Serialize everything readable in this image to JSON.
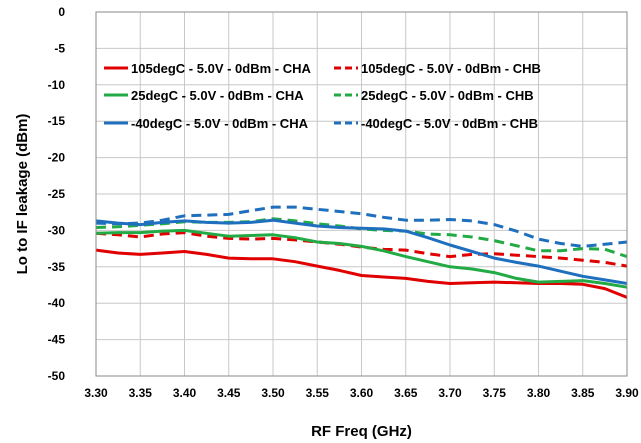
{
  "chart_data": {
    "type": "line",
    "xlabel": "RF Freq (GHz)",
    "ylabel": "Lo to IF leakage (dBm)",
    "xlim": [
      3.3,
      3.9
    ],
    "ylim": [
      -50,
      0
    ],
    "xticks": [
      "3.30",
      "3.35",
      "3.40",
      "3.45",
      "3.50",
      "3.55",
      "3.60",
      "3.65",
      "3.70",
      "3.75",
      "3.80",
      "3.85",
      "3.90"
    ],
    "yticks": [
      "0",
      "-5",
      "-10",
      "-15",
      "-20",
      "-25",
      "-30",
      "-35",
      "-40",
      "-45",
      "-50"
    ],
    "grid": true,
    "legend_position": "top, inside plot area, two columns",
    "series": [
      {
        "name": "105degC - 5.0V - 0dBm - CHA",
        "color": "#e00000",
        "dash": "solid",
        "x": [
          3.3,
          3.325,
          3.35,
          3.375,
          3.4,
          3.425,
          3.45,
          3.475,
          3.5,
          3.525,
          3.55,
          3.575,
          3.6,
          3.625,
          3.65,
          3.675,
          3.7,
          3.725,
          3.75,
          3.775,
          3.8,
          3.825,
          3.85,
          3.875,
          3.9
        ],
        "y": [
          -32.7,
          -33.1,
          -33.3,
          -33.1,
          -32.9,
          -33.3,
          -33.8,
          -33.9,
          -33.9,
          -34.3,
          -34.9,
          -35.5,
          -36.2,
          -36.4,
          -36.6,
          -37.0,
          -37.3,
          -37.2,
          -37.1,
          -37.2,
          -37.3,
          -37.3,
          -37.4,
          -38.0,
          -39.2
        ]
      },
      {
        "name": "105degC - 5.0V - 0dBm - CHB",
        "color": "#e00000",
        "dash": "dashed",
        "x": [
          3.3,
          3.325,
          3.35,
          3.375,
          3.4,
          3.425,
          3.45,
          3.475,
          3.5,
          3.525,
          3.55,
          3.575,
          3.6,
          3.625,
          3.65,
          3.675,
          3.7,
          3.725,
          3.75,
          3.775,
          3.8,
          3.825,
          3.85,
          3.875,
          3.9
        ],
        "y": [
          -30.4,
          -30.6,
          -30.9,
          -30.5,
          -30.3,
          -30.8,
          -31.1,
          -31.2,
          -31.1,
          -31.3,
          -31.6,
          -31.9,
          -32.3,
          -32.6,
          -32.7,
          -33.2,
          -33.6,
          -33.3,
          -33.2,
          -33.4,
          -33.6,
          -33.8,
          -34.1,
          -34.4,
          -34.9
        ]
      },
      {
        "name": "25degC - 5.0V - 0dBm - CHA",
        "color": "#22aa44",
        "dash": "solid",
        "x": [
          3.3,
          3.325,
          3.35,
          3.375,
          3.4,
          3.425,
          3.45,
          3.475,
          3.5,
          3.525,
          3.55,
          3.575,
          3.6,
          3.625,
          3.65,
          3.675,
          3.7,
          3.725,
          3.75,
          3.775,
          3.8,
          3.825,
          3.85,
          3.875,
          3.9
        ],
        "y": [
          -30.4,
          -30.3,
          -30.3,
          -30.1,
          -30.0,
          -30.4,
          -30.8,
          -30.7,
          -30.6,
          -31.0,
          -31.6,
          -31.8,
          -32.2,
          -32.8,
          -33.6,
          -34.3,
          -35.0,
          -35.3,
          -35.8,
          -36.6,
          -37.1,
          -37.0,
          -36.9,
          -37.3,
          -37.8
        ]
      },
      {
        "name": "25degC - 5.0V - 0dBm - CHB",
        "color": "#22aa44",
        "dash": "dashed",
        "x": [
          3.3,
          3.325,
          3.35,
          3.375,
          3.4,
          3.425,
          3.45,
          3.475,
          3.5,
          3.525,
          3.55,
          3.575,
          3.6,
          3.625,
          3.65,
          3.675,
          3.7,
          3.725,
          3.75,
          3.775,
          3.8,
          3.825,
          3.85,
          3.875,
          3.9
        ],
        "y": [
          -29.6,
          -29.5,
          -29.3,
          -29.1,
          -28.8,
          -28.9,
          -28.9,
          -28.8,
          -28.4,
          -28.7,
          -29.1,
          -29.4,
          -29.8,
          -30.0,
          -30.1,
          -30.5,
          -30.6,
          -30.9,
          -31.4,
          -32.1,
          -32.8,
          -32.8,
          -32.5,
          -32.6,
          -33.6
        ]
      },
      {
        "name": "-40degC - 5.0V - 0dBm - CHA",
        "color": "#1f6fbf",
        "dash": "solid",
        "x": [
          3.3,
          3.325,
          3.35,
          3.375,
          3.4,
          3.425,
          3.45,
          3.475,
          3.5,
          3.525,
          3.55,
          3.575,
          3.6,
          3.625,
          3.65,
          3.675,
          3.7,
          3.725,
          3.75,
          3.775,
          3.8,
          3.825,
          3.85,
          3.875,
          3.9
        ],
        "y": [
          -28.7,
          -29.0,
          -29.2,
          -28.9,
          -28.7,
          -28.9,
          -29.0,
          -28.9,
          -28.6,
          -29.0,
          -29.4,
          -29.6,
          -29.7,
          -29.8,
          -30.1,
          -31.0,
          -32.0,
          -32.9,
          -33.8,
          -34.4,
          -34.9,
          -35.6,
          -36.3,
          -36.8,
          -37.3
        ]
      },
      {
        "name": "-40degC - 5.0V - 0dBm - CHB",
        "color": "#1f6fbf",
        "dash": "dashed",
        "x": [
          3.3,
          3.325,
          3.35,
          3.375,
          3.4,
          3.425,
          3.45,
          3.475,
          3.5,
          3.525,
          3.55,
          3.575,
          3.6,
          3.625,
          3.65,
          3.675,
          3.7,
          3.725,
          3.75,
          3.775,
          3.8,
          3.825,
          3.85,
          3.875,
          3.9
        ],
        "y": [
          -29.0,
          -29.1,
          -29.0,
          -28.6,
          -28.0,
          -27.9,
          -27.8,
          -27.3,
          -26.8,
          -26.8,
          -27.1,
          -27.4,
          -27.7,
          -28.2,
          -28.6,
          -28.6,
          -28.5,
          -28.7,
          -29.2,
          -30.1,
          -31.2,
          -31.8,
          -32.2,
          -31.9,
          -31.6
        ]
      }
    ]
  }
}
